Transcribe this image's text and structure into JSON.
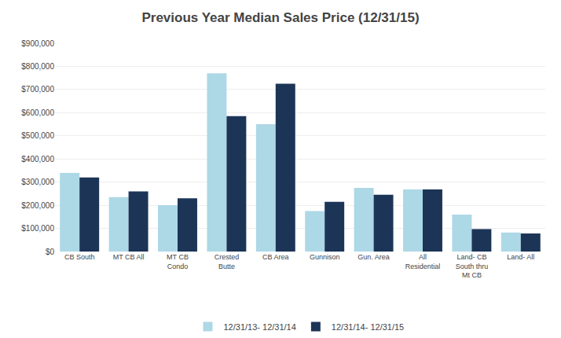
{
  "chart_data": {
    "type": "bar",
    "title": "Previous Year Median Sales Price (12/31/15)",
    "categories": [
      "CB South",
      "MT CB All",
      "MT CB\nCondo",
      "Crested\nButte",
      "CB Area",
      "Gunnison",
      "Gun. Area",
      "All\nResidential",
      "Land- CB\nSouth thru\nMt CB",
      "Land- All"
    ],
    "series": [
      {
        "name": "12/31/13- 12/31/14",
        "color": "#ADD8E6",
        "values": [
          340000,
          235000,
          200000,
          770000,
          550000,
          175000,
          275000,
          268000,
          160000,
          82000
        ]
      },
      {
        "name": "12/31/14- 12/31/15",
        "color": "#1C3557",
        "values": [
          320000,
          260000,
          230000,
          585000,
          725000,
          215000,
          245000,
          268000,
          97000,
          78000
        ]
      }
    ],
    "ylim": [
      0,
      900000
    ],
    "yticks": [
      {
        "value": 0,
        "label": "$0"
      },
      {
        "value": 100000,
        "label": "$100,000"
      },
      {
        "value": 200000,
        "label": "$200,000"
      },
      {
        "value": 300000,
        "label": "$300,000"
      },
      {
        "value": 400000,
        "label": "$400,000"
      },
      {
        "value": 500000,
        "label": "$500,000"
      },
      {
        "value": 600000,
        "label": "$600,000"
      },
      {
        "value": 700000,
        "label": "$700,000"
      },
      {
        "value": 800000,
        "label": "$800,000"
      },
      {
        "value": 900000,
        "label": "$900,000"
      }
    ],
    "grid": true,
    "legend": "bottom"
  }
}
